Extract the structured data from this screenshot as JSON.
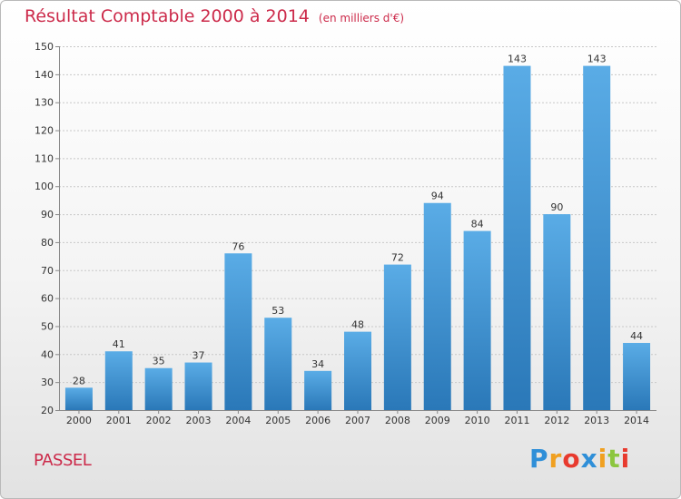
{
  "header": {
    "title": "Résultat Comptable 2000 à 2014",
    "subtitle": "(en milliers d'€)"
  },
  "footer": {
    "place": "PASSEL",
    "logo": {
      "letters": [
        "P",
        "r",
        "o",
        "x",
        "i",
        "t",
        "i"
      ],
      "colors": [
        "#2f8fd8",
        "#f0a020",
        "#e83a2e",
        "#2f8fd8",
        "#f0a020",
        "#8cc63f",
        "#e83a2e"
      ]
    }
  },
  "colors": {
    "title": "#cc2a4a",
    "bar_light": "#5aace6",
    "bar_dark": "#2a78b8",
    "grid": "#c8c8c8"
  },
  "chart_data": {
    "type": "bar",
    "categories": [
      "2000",
      "2001",
      "2002",
      "2003",
      "2004",
      "2005",
      "2006",
      "2007",
      "2008",
      "2009",
      "2010",
      "2011",
      "2012",
      "2013",
      "2014"
    ],
    "values": [
      28,
      41,
      35,
      37,
      76,
      53,
      34,
      48,
      72,
      94,
      84,
      143,
      90,
      143,
      44
    ],
    "ylim": [
      20,
      150
    ],
    "yticks": [
      20,
      30,
      40,
      50,
      60,
      70,
      80,
      90,
      100,
      110,
      120,
      130,
      140,
      150
    ],
    "grid": true,
    "data_labels": true
  }
}
